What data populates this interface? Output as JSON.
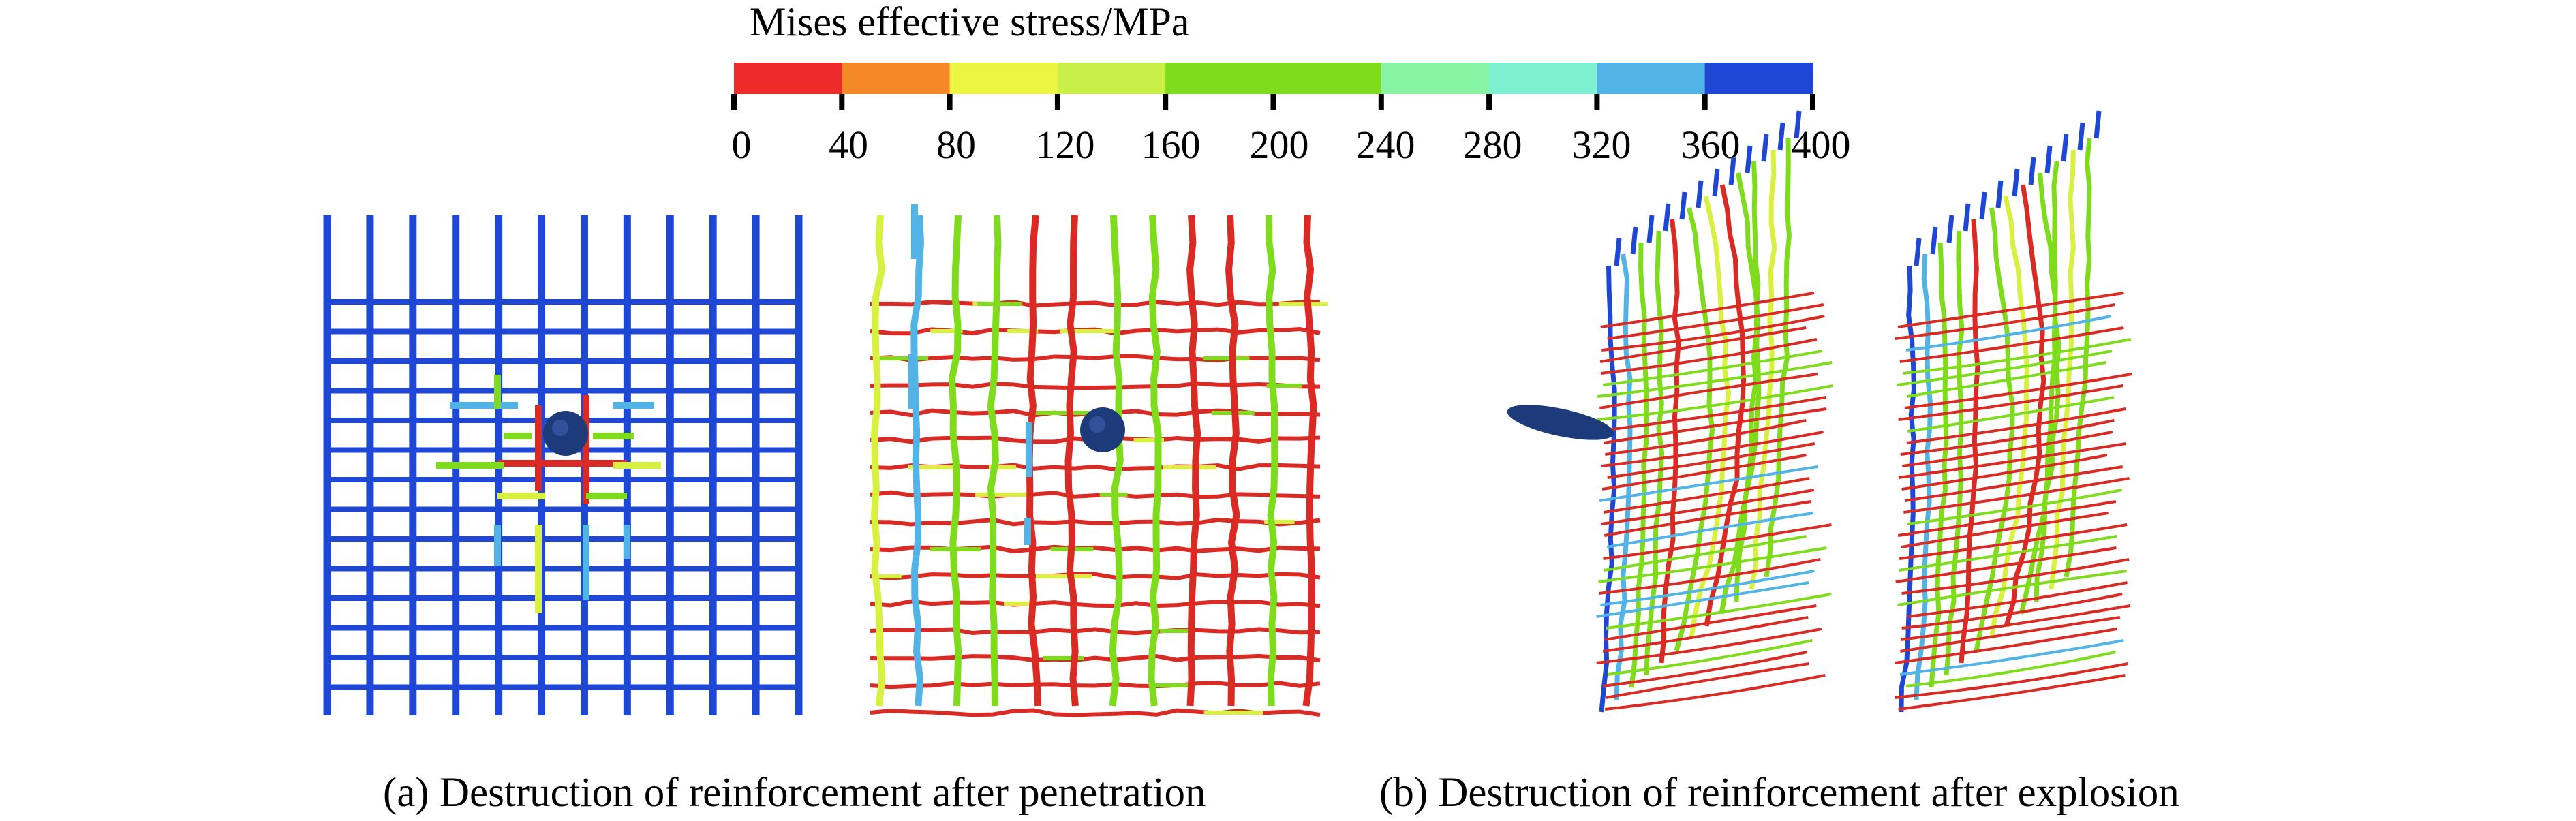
{
  "legend": {
    "title": "Mises effective stress/MPa",
    "ticks": [
      "0",
      "40",
      "80",
      "120",
      "160",
      "200",
      "240",
      "280",
      "320",
      "360",
      "400"
    ],
    "bands": [
      {
        "from": 0,
        "to": 40,
        "color": "#ee2a2a"
      },
      {
        "from": 40,
        "to": 80,
        "color": "#f5892a"
      },
      {
        "from": 80,
        "to": 120,
        "color": "#ecf542"
      },
      {
        "from": 120,
        "to": 160,
        "color": "#c9f046"
      },
      {
        "from": 160,
        "to": 240,
        "color": "#7fdc1c"
      },
      {
        "from": 240,
        "to": 280,
        "color": "#87f5a4"
      },
      {
        "from": 280,
        "to": 320,
        "color": "#7ff0d2"
      },
      {
        "from": 320,
        "to": 360,
        "color": "#52b4e6"
      },
      {
        "from": 360,
        "to": 400,
        "color": "#1f47d6"
      }
    ]
  },
  "captions": {
    "a": "(a) Destruction of reinforcement after penetration",
    "b": "(b) Destruction of reinforcement after explosion"
  },
  "colors": {
    "blue": "#1f47d6",
    "red": "#d92a24",
    "green": "#7fdc1c",
    "yellow": "#d8f040",
    "cyan": "#52b4e6",
    "projectile": "#1d3a7a"
  }
}
